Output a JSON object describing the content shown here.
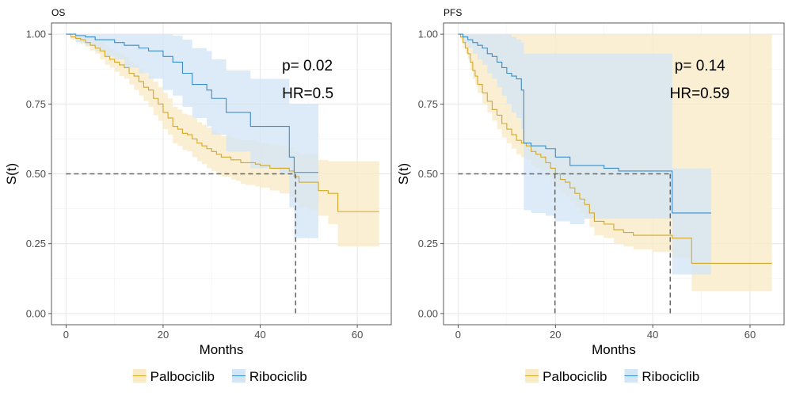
{
  "figure": {
    "legend_position": "bottom",
    "legend": [
      {
        "name": "Palbociclib",
        "line_color": "#D4A82A",
        "fill_color": "#F9EBC6"
      },
      {
        "name": "Ribociclib",
        "line_color": "#3A8DC8",
        "fill_color": "#D3E6F6"
      }
    ]
  },
  "chart_data": [
    {
      "type": "line",
      "subtype": "kaplan-meier",
      "title": "OS",
      "xlabel": "Months",
      "ylabel": "S(t)",
      "xlim": [
        -3,
        67
      ],
      "ylim": [
        -0.04,
        1.04
      ],
      "xticks": [
        "0",
        "20",
        "40",
        "60"
      ],
      "xtick_values": [
        0,
        20,
        40,
        60
      ],
      "yticks": [
        "0.00",
        "0.25",
        "0.50",
        "0.75",
        "1.00"
      ],
      "ytick_values": [
        0,
        0.25,
        0.5,
        0.75,
        1
      ],
      "grid": true,
      "annotations": [
        "p= 0.02",
        "HR=0.5"
      ],
      "annotation_positions": [
        [
          44.5,
          0.89
        ],
        [
          44.5,
          0.79
        ]
      ],
      "median_lines": {
        "y": 0.5,
        "x": [
          47.3
        ]
      },
      "series": [
        {
          "name": "Palbociclib",
          "color": "#D4A82A",
          "fill": "#F9EBC6",
          "x": [
            0,
            1,
            2,
            3,
            4,
            5,
            6,
            7,
            8,
            9,
            10,
            11,
            12,
            13,
            14,
            15,
            16,
            17,
            18,
            19,
            20,
            21,
            22,
            23,
            24,
            25,
            26,
            27,
            28,
            29,
            30,
            31,
            32,
            33,
            34,
            35,
            36,
            37,
            38,
            39,
            40,
            42,
            44,
            46,
            47,
            48,
            50,
            52,
            54,
            56,
            60,
            64.5
          ],
          "y": [
            1.0,
            0.99,
            0.985,
            0.98,
            0.97,
            0.96,
            0.95,
            0.94,
            0.92,
            0.91,
            0.9,
            0.89,
            0.88,
            0.86,
            0.85,
            0.83,
            0.81,
            0.8,
            0.77,
            0.75,
            0.72,
            0.7,
            0.67,
            0.66,
            0.645,
            0.64,
            0.625,
            0.61,
            0.6,
            0.59,
            0.58,
            0.57,
            0.56,
            0.56,
            0.55,
            0.55,
            0.54,
            0.54,
            0.54,
            0.535,
            0.53,
            0.52,
            0.52,
            0.51,
            0.49,
            0.47,
            0.47,
            0.44,
            0.43,
            0.365,
            0.365,
            0.365
          ],
          "lower": [
            1.0,
            0.98,
            0.975,
            0.965,
            0.955,
            0.94,
            0.93,
            0.91,
            0.89,
            0.88,
            0.865,
            0.85,
            0.84,
            0.82,
            0.8,
            0.78,
            0.76,
            0.74,
            0.71,
            0.69,
            0.66,
            0.64,
            0.61,
            0.6,
            0.585,
            0.58,
            0.56,
            0.545,
            0.535,
            0.52,
            0.51,
            0.5,
            0.49,
            0.49,
            0.48,
            0.475,
            0.465,
            0.46,
            0.46,
            0.455,
            0.45,
            0.44,
            0.43,
            0.42,
            0.4,
            0.38,
            0.37,
            0.35,
            0.32,
            0.24,
            0.24,
            0.24
          ],
          "upper": [
            1.0,
            1.0,
            1.0,
            0.995,
            0.99,
            0.985,
            0.975,
            0.97,
            0.955,
            0.945,
            0.935,
            0.93,
            0.92,
            0.9,
            0.89,
            0.875,
            0.86,
            0.85,
            0.83,
            0.81,
            0.79,
            0.77,
            0.74,
            0.73,
            0.715,
            0.71,
            0.7,
            0.685,
            0.675,
            0.665,
            0.655,
            0.645,
            0.635,
            0.635,
            0.63,
            0.625,
            0.62,
            0.62,
            0.62,
            0.615,
            0.61,
            0.605,
            0.6,
            0.595,
            0.58,
            0.57,
            0.57,
            0.55,
            0.545,
            0.545,
            0.545,
            0.545
          ]
        },
        {
          "name": "Ribociclib",
          "color": "#3A8DC8",
          "fill": "#D3E6F6",
          "x": [
            0,
            2,
            4,
            6,
            8,
            10,
            12,
            15,
            17,
            20,
            22,
            24,
            26,
            28,
            29,
            30,
            33,
            35,
            38,
            40,
            44,
            46,
            47,
            52
          ],
          "y": [
            1.0,
            0.995,
            0.99,
            0.98,
            0.98,
            0.97,
            0.96,
            0.95,
            0.94,
            0.92,
            0.9,
            0.86,
            0.82,
            0.82,
            0.8,
            0.77,
            0.72,
            0.72,
            0.67,
            0.67,
            0.67,
            0.56,
            0.505,
            0.505
          ],
          "lower": [
            1.0,
            0.97,
            0.96,
            0.94,
            0.92,
            0.91,
            0.88,
            0.86,
            0.84,
            0.8,
            0.78,
            0.74,
            0.7,
            0.7,
            0.67,
            0.64,
            0.58,
            0.58,
            0.52,
            0.52,
            0.5,
            0.38,
            0.27,
            0.27
          ],
          "upper": [
            1.0,
            1.0,
            1.0,
            1.0,
            1.0,
            1.0,
            1.0,
            1.0,
            1.0,
            1.0,
            0.995,
            0.98,
            0.95,
            0.95,
            0.94,
            0.91,
            0.87,
            0.87,
            0.84,
            0.84,
            0.84,
            0.75,
            0.75,
            0.75
          ]
        }
      ]
    },
    {
      "type": "line",
      "subtype": "kaplan-meier",
      "title": "PFS",
      "xlabel": "Months",
      "ylabel": "S(t)",
      "xlim": [
        -3,
        67
      ],
      "ylim": [
        -0.04,
        1.04
      ],
      "xticks": [
        "0",
        "20",
        "40",
        "60"
      ],
      "xtick_values": [
        0,
        20,
        40,
        60
      ],
      "yticks": [
        "0.00",
        "0.25",
        "0.50",
        "0.75",
        "1.00"
      ],
      "ytick_values": [
        0,
        0.25,
        0.5,
        0.75,
        1
      ],
      "grid": true,
      "annotations": [
        "p= 0.14",
        "HR=0.59"
      ],
      "annotation_positions": [
        [
          44.5,
          0.89
        ],
        [
          43.5,
          0.79
        ]
      ],
      "median_lines": {
        "y": 0.5,
        "x": [
          19.9,
          43.6
        ]
      },
      "series": [
        {
          "name": "Palbociclib",
          "color": "#D4A82A",
          "fill": "#F9EBC6",
          "x": [
            0,
            0.5,
            1,
            1.5,
            2,
            2.5,
            3,
            3.5,
            4,
            5,
            6,
            7,
            8,
            9,
            10,
            11,
            12,
            13,
            14,
            15,
            16,
            17,
            18,
            19,
            20,
            21,
            22,
            23,
            24,
            25,
            26,
            27,
            28,
            30,
            32,
            34,
            36,
            40,
            44,
            48,
            52,
            56,
            60,
            64.5
          ],
          "y": [
            1.0,
            0.99,
            0.97,
            0.95,
            0.93,
            0.9,
            0.87,
            0.85,
            0.82,
            0.79,
            0.76,
            0.73,
            0.71,
            0.68,
            0.66,
            0.64,
            0.62,
            0.61,
            0.6,
            0.58,
            0.57,
            0.56,
            0.54,
            0.52,
            0.5,
            0.48,
            0.47,
            0.45,
            0.43,
            0.41,
            0.39,
            0.36,
            0.33,
            0.32,
            0.3,
            0.29,
            0.28,
            0.28,
            0.27,
            0.18,
            0.18,
            0.18,
            0.18,
            0.18
          ],
          "lower": [
            1.0,
            0.98,
            0.95,
            0.93,
            0.91,
            0.87,
            0.84,
            0.82,
            0.79,
            0.75,
            0.72,
            0.69,
            0.66,
            0.63,
            0.61,
            0.59,
            0.57,
            0.56,
            0.55,
            0.53,
            0.52,
            0.51,
            0.49,
            0.47,
            0.45,
            0.43,
            0.42,
            0.4,
            0.38,
            0.36,
            0.34,
            0.31,
            0.28,
            0.27,
            0.25,
            0.24,
            0.23,
            0.22,
            0.2,
            0.08,
            0.08,
            0.08,
            0.08,
            0.08
          ]
        },
        {
          "name": "Ribociclib",
          "color": "#3A8DC8",
          "fill": "#D3E6F6",
          "x": [
            0,
            1,
            2,
            3,
            4,
            5,
            6,
            7,
            8,
            9,
            10,
            11,
            12,
            13,
            13.5,
            15,
            18,
            20,
            23,
            26,
            30,
            33,
            36,
            40,
            43.5,
            44,
            52
          ],
          "y": [
            1.0,
            0.99,
            0.98,
            0.97,
            0.96,
            0.95,
            0.93,
            0.92,
            0.9,
            0.88,
            0.86,
            0.85,
            0.84,
            0.8,
            0.61,
            0.6,
            0.59,
            0.56,
            0.53,
            0.53,
            0.52,
            0.51,
            0.51,
            0.51,
            0.51,
            0.36,
            0.36
          ],
          "lower": [
            1.0,
            0.97,
            0.95,
            0.93,
            0.91,
            0.89,
            0.86,
            0.84,
            0.81,
            0.78,
            0.75,
            0.72,
            0.7,
            0.66,
            0.37,
            0.36,
            0.35,
            0.33,
            0.32,
            0.34,
            0.34,
            0.34,
            0.34,
            0.34,
            0.34,
            0.14,
            0.14
          ],
          "upper": [
            1.0,
            1.0,
            1.0,
            1.0,
            1.0,
            1.0,
            1.0,
            1.0,
            1.0,
            1.0,
            1.0,
            0.99,
            0.98,
            0.97,
            0.93,
            0.93,
            0.93,
            0.93,
            0.93,
            0.93,
            0.93,
            0.93,
            0.93,
            0.93,
            0.93,
            0.52,
            0.52
          ]
        }
      ]
    }
  ]
}
